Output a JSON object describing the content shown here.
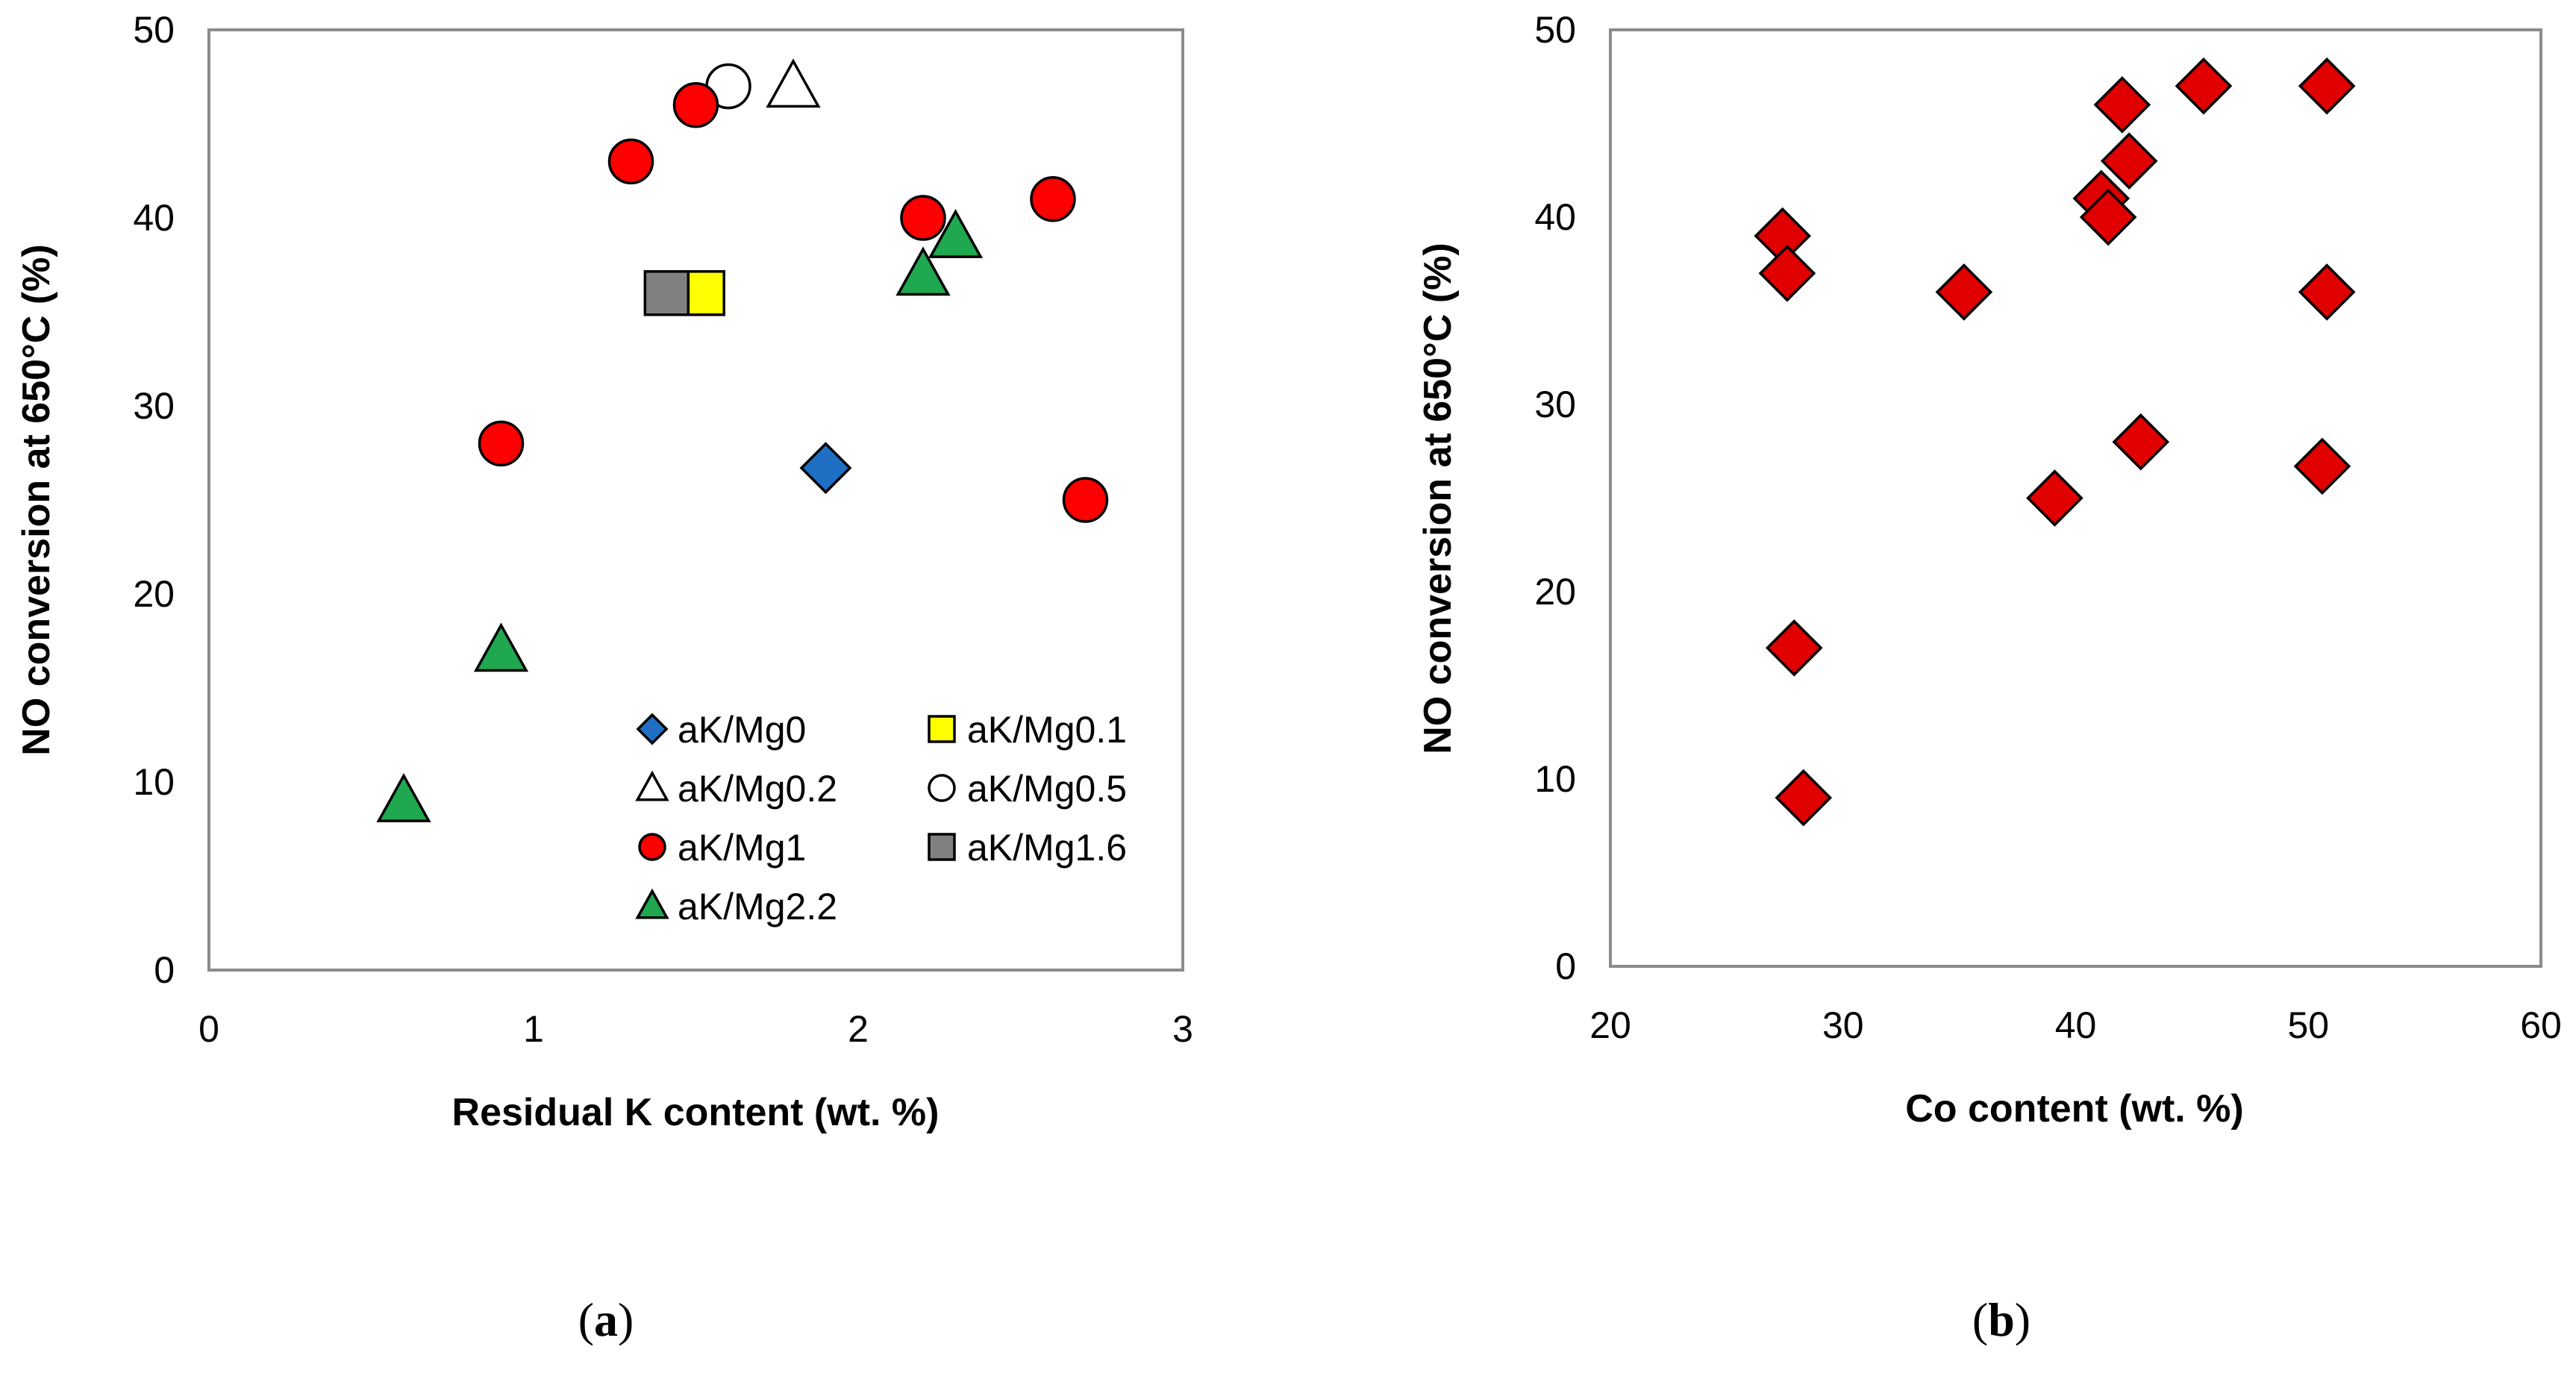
{
  "chart_data": [
    {
      "type": "scatter",
      "panel_label": "a",
      "title": "",
      "xlabel": "Residual K content (wt. %)",
      "ylabel": "NO conversion at 650°C (%)",
      "xlim": [
        0,
        3
      ],
      "ylim": [
        0,
        50
      ],
      "xticks": [
        0,
        1,
        2,
        3
      ],
      "yticks": [
        0,
        10,
        20,
        30,
        40,
        50
      ],
      "grid": false,
      "legend_position": "bottom-right",
      "series": [
        {
          "name": "aK/Mg0",
          "marker": "diamond",
          "fill": "#1f6fc5",
          "legend_col": 0,
          "legend_row": 0,
          "points": [
            [
              1.9,
              26.7
            ]
          ]
        },
        {
          "name": "aK/Mg0.1",
          "marker": "square",
          "fill": "#ffff00",
          "legend_col": 1,
          "legend_row": 0,
          "points": [
            [
              1.52,
              36
            ]
          ]
        },
        {
          "name": "aK/Mg0.2",
          "marker": "triangle",
          "fill": "#ffffff",
          "legend_col": 0,
          "legend_row": 1,
          "points": [
            [
              1.8,
              47
            ]
          ]
        },
        {
          "name": "aK/Mg0.5",
          "marker": "circle",
          "fill": "#ffffff",
          "legend_col": 1,
          "legend_row": 1,
          "points": [
            [
              1.6,
              47
            ]
          ]
        },
        {
          "name": "aK/Mg1",
          "marker": "circle",
          "fill": "#ff0000",
          "legend_col": 0,
          "legend_row": 2,
          "points": [
            [
              0.9,
              28
            ],
            [
              1.3,
              43
            ],
            [
              1.5,
              46
            ],
            [
              2.2,
              40
            ],
            [
              2.6,
              41
            ],
            [
              2.7,
              25
            ]
          ]
        },
        {
          "name": "aK/Mg1.6",
          "marker": "square",
          "fill": "#808080",
          "legend_col": 1,
          "legend_row": 2,
          "points": [
            [
              1.41,
              36
            ]
          ]
        },
        {
          "name": "aK/Mg2.2",
          "marker": "triangle",
          "fill": "#1fa84f",
          "legend_col": 0,
          "legend_row": 3,
          "points": [
            [
              0.6,
              9
            ],
            [
              0.9,
              17
            ],
            [
              2.2,
              37
            ],
            [
              2.3,
              39
            ]
          ]
        }
      ]
    },
    {
      "type": "scatter",
      "panel_label": "b",
      "title": "",
      "xlabel": "Co content (wt. %)",
      "ylabel": "NO conversion  at 650°C (%)",
      "xlim": [
        20,
        60
      ],
      "ylim": [
        0,
        50
      ],
      "xticks": [
        20,
        30,
        40,
        50,
        60
      ],
      "yticks": [
        0,
        10,
        20,
        30,
        40,
        50
      ],
      "grid": false,
      "legend_position": "none",
      "series": [
        {
          "name": "",
          "marker": "diamond",
          "fill": "#e00000",
          "points": [
            [
              27.4,
              39
            ],
            [
              27.6,
              37
            ],
            [
              27.9,
              17
            ],
            [
              28.3,
              9
            ],
            [
              35.2,
              36
            ],
            [
              39.1,
              25
            ],
            [
              41.1,
              41
            ],
            [
              41.4,
              40
            ],
            [
              42.0,
              46
            ],
            [
              42.3,
              43
            ],
            [
              42.8,
              28
            ],
            [
              45.5,
              47
            ],
            [
              50.6,
              26.7
            ],
            [
              50.8,
              36
            ],
            [
              50.8,
              47
            ]
          ]
        }
      ]
    }
  ]
}
